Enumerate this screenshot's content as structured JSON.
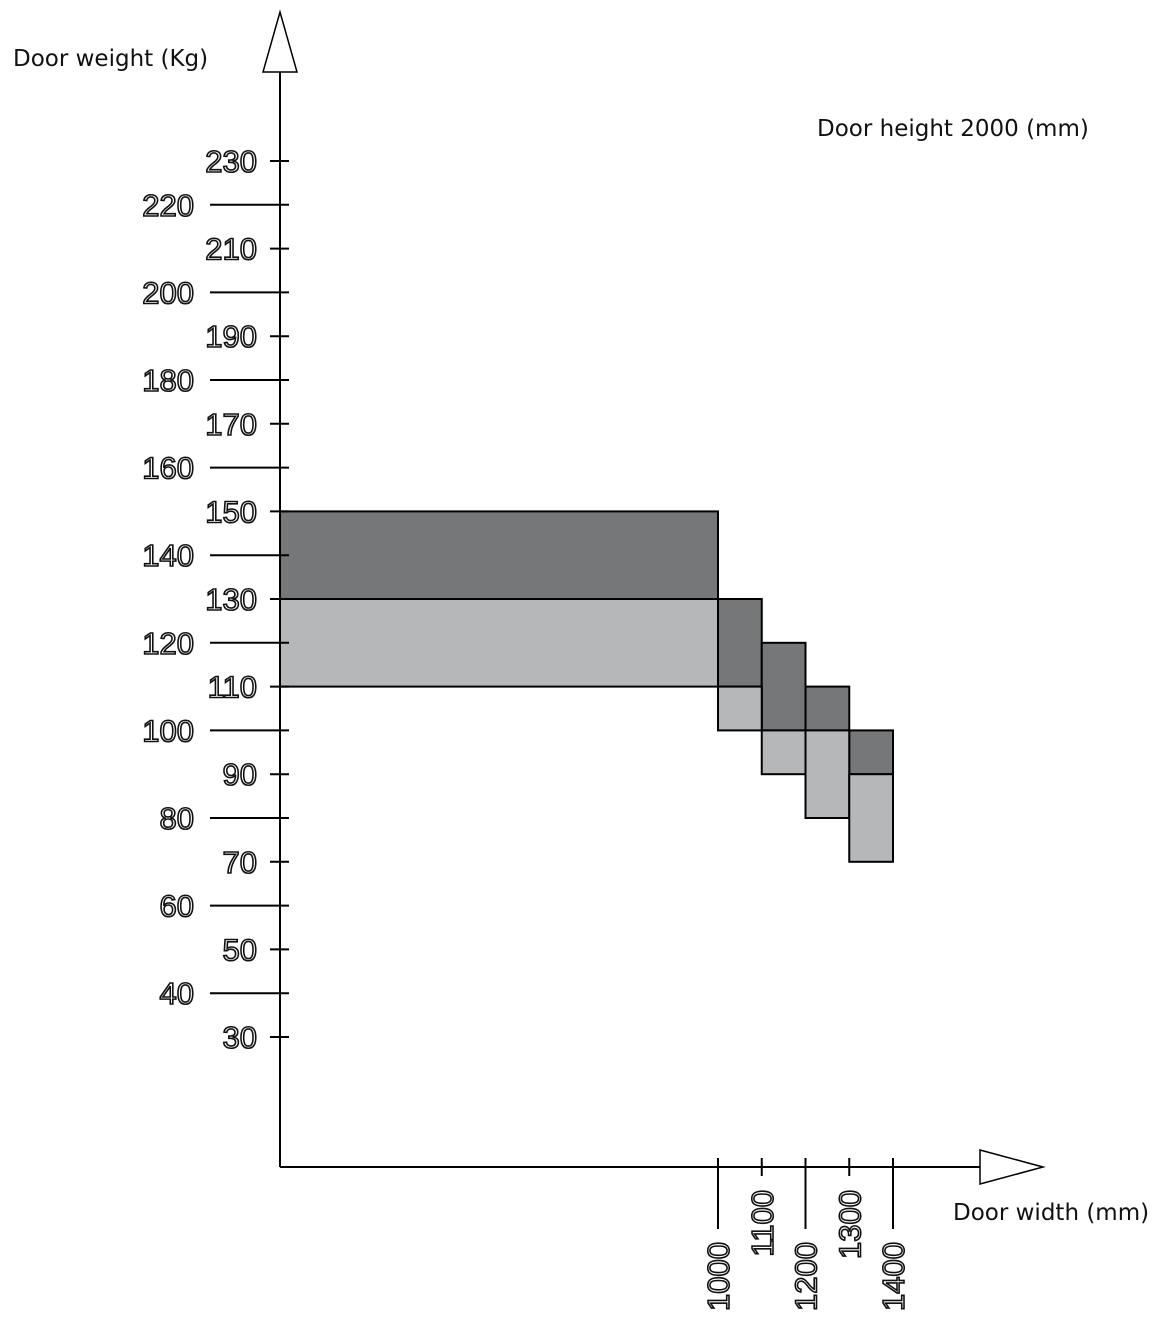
{
  "chart_data": {
    "type": "area",
    "title": "",
    "annotation": "Door height 2000 (mm)",
    "xlabel": "Door width (mm)",
    "ylabel": "Door weight (Kg)",
    "x_ticks": [
      1000,
      1100,
      1200,
      1300,
      1400
    ],
    "y_ticks": [
      230,
      220,
      210,
      200,
      190,
      180,
      170,
      160,
      150,
      140,
      130,
      120,
      110,
      100,
      90,
      80,
      70,
      60,
      50,
      40,
      30
    ],
    "xlim": [
      0,
      1400
    ],
    "ylim": [
      30,
      230
    ],
    "grid": false,
    "series": [
      {
        "color": "#757779",
        "steps": [
          {
            "x": [
              0,
              1000
            ],
            "y": [
              130,
              150
            ]
          },
          {
            "x": [
              1000,
              1100
            ],
            "y": [
              110,
              130
            ]
          },
          {
            "x": [
              1100,
              1200
            ],
            "y": [
              100,
              120
            ]
          },
          {
            "x": [
              1200,
              1300
            ],
            "y": [
              100,
              110
            ]
          },
          {
            "x": [
              1300,
              1400
            ],
            "y": [
              90,
              100
            ]
          }
        ]
      },
      {
        "color": "#b6b7b8",
        "steps": [
          {
            "x": [
              0,
              1000
            ],
            "y": [
              110,
              130
            ]
          },
          {
            "x": [
              1000,
              1100
            ],
            "y": [
              100,
              110
            ]
          },
          {
            "x": [
              1100,
              1200
            ],
            "y": [
              90,
              100
            ]
          },
          {
            "x": [
              1200,
              1300
            ],
            "y": [
              80,
              100
            ]
          },
          {
            "x": [
              1300,
              1400
            ],
            "y": [
              70,
              90
            ]
          }
        ]
      }
    ]
  }
}
